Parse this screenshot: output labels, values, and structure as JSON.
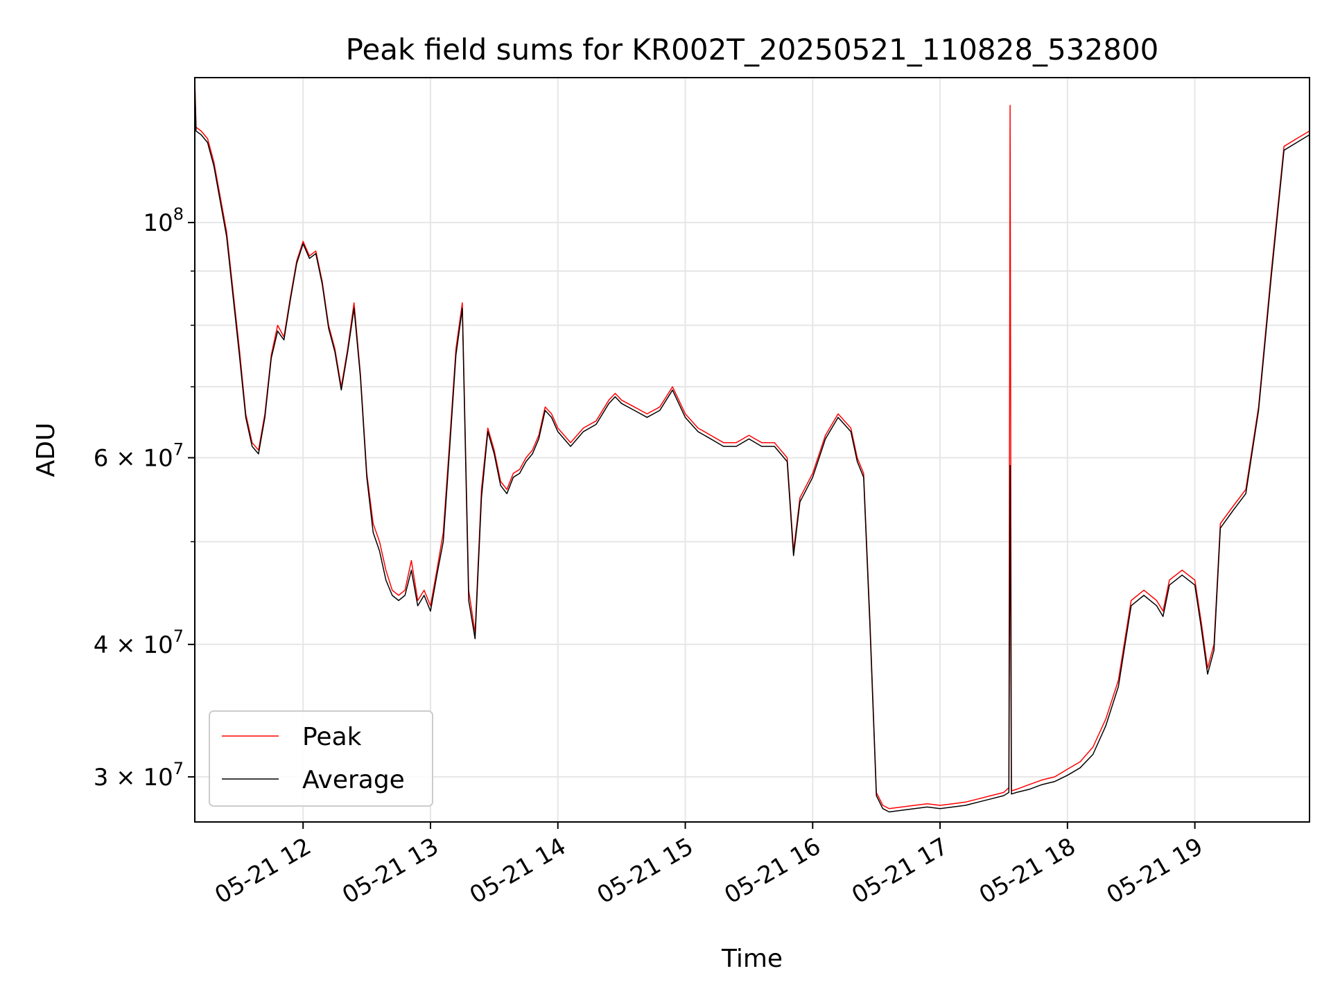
{
  "chart_data": {
    "type": "line",
    "title": "Peak field sums for KR002T_20250521_110828_532800",
    "xlabel": "Time",
    "ylabel": "ADU",
    "yscale": "log",
    "xlim": [
      11.15,
      19.9
    ],
    "ylim": [
      27200000,
      137000000
    ],
    "x_ticks": [
      {
        "value": 12,
        "label": "05-21 12"
      },
      {
        "value": 13,
        "label": "05-21 13"
      },
      {
        "value": 14,
        "label": "05-21 14"
      },
      {
        "value": 15,
        "label": "05-21 15"
      },
      {
        "value": 16,
        "label": "05-21 16"
      },
      {
        "value": 17,
        "label": "05-21 17"
      },
      {
        "value": 18,
        "label": "05-21 18"
      },
      {
        "value": 19,
        "label": "05-21 19"
      }
    ],
    "y_ticks": [
      {
        "value": 100000000,
        "base": "10",
        "exp": "8"
      },
      {
        "value": 60000000,
        "base": "6 × 10",
        "exp": "7"
      },
      {
        "value": 40000000,
        "base": "4 × 10",
        "exp": "7"
      },
      {
        "value": 30000000,
        "base": "3 × 10",
        "exp": "7"
      }
    ],
    "y_minor_ticks": [
      50000000,
      70000000,
      80000000,
      90000000
    ],
    "grid": true,
    "legend_position": "lower-left",
    "legend": [
      {
        "name": "Peak",
        "color": "#ff0000"
      },
      {
        "name": "Average",
        "color": "#000000"
      }
    ],
    "series": [
      {
        "name": "Peak",
        "color": "#ff0000",
        "x": [
          11.15,
          11.16,
          11.2,
          11.25,
          11.3,
          11.4,
          11.5,
          11.55,
          11.6,
          11.65,
          11.7,
          11.75,
          11.8,
          11.85,
          11.9,
          11.95,
          12.0,
          12.05,
          12.1,
          12.15,
          12.2,
          12.25,
          12.3,
          12.35,
          12.4,
          12.45,
          12.5,
          12.55,
          12.6,
          12.65,
          12.7,
          12.75,
          12.8,
          12.85,
          12.9,
          12.95,
          13.0,
          13.05,
          13.1,
          13.15,
          13.2,
          13.25,
          13.3,
          13.35,
          13.4,
          13.45,
          13.5,
          13.55,
          13.6,
          13.65,
          13.7,
          13.75,
          13.8,
          13.85,
          13.9,
          13.95,
          14.0,
          14.1,
          14.2,
          14.3,
          14.4,
          14.45,
          14.5,
          14.6,
          14.7,
          14.8,
          14.9,
          15.0,
          15.1,
          15.2,
          15.3,
          15.4,
          15.5,
          15.6,
          15.7,
          15.8,
          15.85,
          15.9,
          16.0,
          16.1,
          16.2,
          16.3,
          16.35,
          16.4,
          16.45,
          16.5,
          16.55,
          16.6,
          16.7,
          16.8,
          16.9,
          17.0,
          17.1,
          17.2,
          17.3,
          17.4,
          17.5,
          17.54,
          17.55,
          17.56,
          17.6,
          17.7,
          17.8,
          17.9,
          18.0,
          18.1,
          18.2,
          18.3,
          18.4,
          18.5,
          18.6,
          18.7,
          18.75,
          18.8,
          18.9,
          19.0,
          19.05,
          19.1,
          19.15,
          19.2,
          19.3,
          19.4,
          19.5,
          19.6,
          19.7,
          19.8,
          19.9
        ],
        "y": [
          137000000,
          123000000,
          122000000,
          120000000,
          114000000,
          98000000,
          76000000,
          66000000,
          62000000,
          61000000,
          66000000,
          75000000,
          80000000,
          78000000,
          85000000,
          92000000,
          96000000,
          93000000,
          94000000,
          88000000,
          80000000,
          76000000,
          70000000,
          76000000,
          84000000,
          72000000,
          58000000,
          52000000,
          50000000,
          47000000,
          45000000,
          44500000,
          45000000,
          48000000,
          44000000,
          45000000,
          43500000,
          47000000,
          51000000,
          62000000,
          76000000,
          84000000,
          45000000,
          41000000,
          56000000,
          64000000,
          61000000,
          57000000,
          56000000,
          58000000,
          58500000,
          60000000,
          61000000,
          63000000,
          67000000,
          66000000,
          64000000,
          62000000,
          64000000,
          65000000,
          68000000,
          69000000,
          68000000,
          67000000,
          66000000,
          67000000,
          70000000,
          66000000,
          64000000,
          63000000,
          62000000,
          62000000,
          63000000,
          62000000,
          62000000,
          60000000,
          49000000,
          55000000,
          58000000,
          63000000,
          66000000,
          64000000,
          60000000,
          58000000,
          42000000,
          29000000,
          28200000,
          28000000,
          28100000,
          28200000,
          28300000,
          28200000,
          28300000,
          28400000,
          28600000,
          28800000,
          29000000,
          29300000,
          129000000,
          29100000,
          29200000,
          29500000,
          29800000,
          30000000,
          30500000,
          31000000,
          32000000,
          34000000,
          37000000,
          44000000,
          45000000,
          44000000,
          43000000,
          46000000,
          47000000,
          46000000,
          42000000,
          38000000,
          40000000,
          52000000,
          54000000,
          56000000,
          67000000,
          90000000,
          118000000,
          120000000,
          122000000
        ]
      },
      {
        "name": "Average",
        "color": "#000000",
        "x": [
          11.15,
          11.16,
          11.2,
          11.25,
          11.3,
          11.4,
          11.5,
          11.55,
          11.6,
          11.65,
          11.7,
          11.75,
          11.8,
          11.85,
          11.9,
          11.95,
          12.0,
          12.05,
          12.1,
          12.15,
          12.2,
          12.25,
          12.3,
          12.35,
          12.4,
          12.45,
          12.5,
          12.55,
          12.6,
          12.65,
          12.7,
          12.75,
          12.8,
          12.85,
          12.9,
          12.95,
          13.0,
          13.05,
          13.1,
          13.15,
          13.2,
          13.25,
          13.3,
          13.35,
          13.4,
          13.45,
          13.5,
          13.55,
          13.6,
          13.65,
          13.7,
          13.75,
          13.8,
          13.85,
          13.9,
          13.95,
          14.0,
          14.1,
          14.2,
          14.3,
          14.4,
          14.45,
          14.5,
          14.6,
          14.7,
          14.8,
          14.9,
          15.0,
          15.1,
          15.2,
          15.3,
          15.4,
          15.5,
          15.6,
          15.7,
          15.8,
          15.85,
          15.9,
          16.0,
          16.1,
          16.2,
          16.3,
          16.35,
          16.4,
          16.45,
          16.5,
          16.55,
          16.6,
          16.7,
          16.8,
          16.9,
          17.0,
          17.1,
          17.2,
          17.3,
          17.4,
          17.5,
          17.54,
          17.55,
          17.56,
          17.6,
          17.7,
          17.8,
          17.9,
          18.0,
          18.1,
          18.2,
          18.3,
          18.4,
          18.5,
          18.6,
          18.7,
          18.75,
          18.8,
          18.9,
          19.0,
          19.05,
          19.1,
          19.15,
          19.2,
          19.3,
          19.4,
          19.5,
          19.6,
          19.7,
          19.8,
          19.9
        ],
        "y": [
          135000000,
          122000000,
          121000000,
          119000000,
          113000000,
          97000000,
          75000000,
          65500000,
          61500000,
          60500000,
          65500000,
          74500000,
          79000000,
          77500000,
          84500000,
          91500000,
          95500000,
          92500000,
          93500000,
          87500000,
          79500000,
          75500000,
          69500000,
          75500000,
          83000000,
          71500000,
          57500000,
          51000000,
          49000000,
          46000000,
          44500000,
          44000000,
          44500000,
          47000000,
          43500000,
          44500000,
          43000000,
          46500000,
          50000000,
          61000000,
          75000000,
          83000000,
          44000000,
          40500000,
          55000000,
          63500000,
          60500000,
          56500000,
          55500000,
          57500000,
          58000000,
          59500000,
          60500000,
          62500000,
          66500000,
          65500000,
          63500000,
          61500000,
          63500000,
          64500000,
          67500000,
          68500000,
          67500000,
          66500000,
          65500000,
          66500000,
          69500000,
          65500000,
          63500000,
          62500000,
          61500000,
          61500000,
          62500000,
          61500000,
          61500000,
          59500000,
          48500000,
          54500000,
          57500000,
          62500000,
          65500000,
          63500000,
          59500000,
          57500000,
          41500000,
          28800000,
          28000000,
          27800000,
          27900000,
          28000000,
          28100000,
          28000000,
          28100000,
          28200000,
          28400000,
          28600000,
          28800000,
          29000000,
          59000000,
          28900000,
          29000000,
          29200000,
          29500000,
          29700000,
          30100000,
          30600000,
          31500000,
          33500000,
          36500000,
          43500000,
          44500000,
          43500000,
          42500000,
          45500000,
          46500000,
          45500000,
          41500000,
          37500000,
          39500000,
          51500000,
          53500000,
          55500000,
          66500000,
          89000000,
          117000000,
          119000000,
          121000000
        ]
      }
    ]
  }
}
